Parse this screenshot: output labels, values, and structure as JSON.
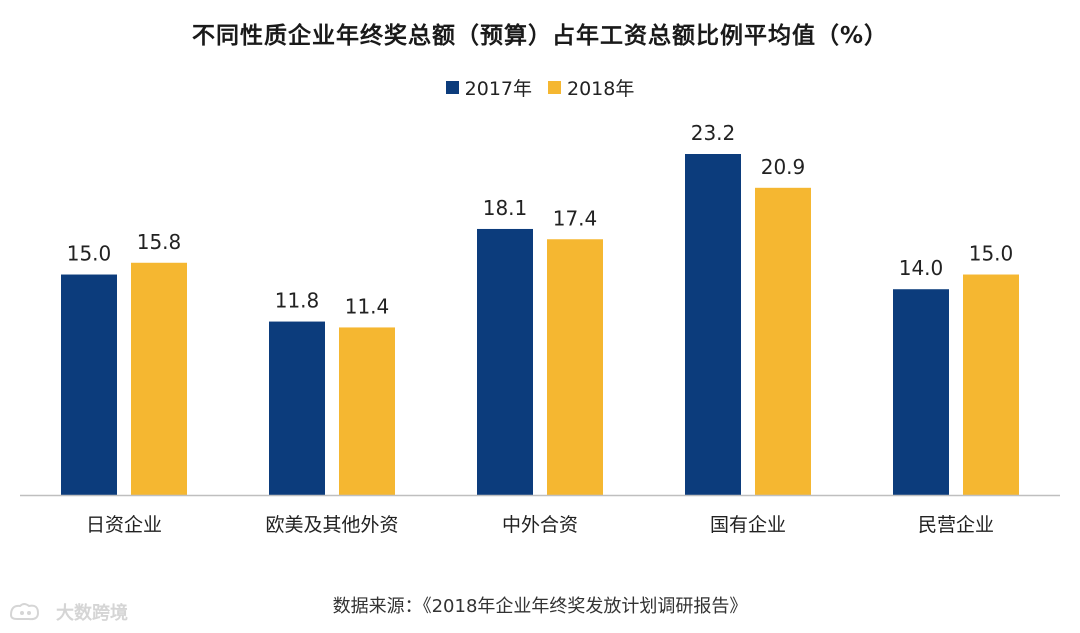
{
  "colors": {
    "series_2017": "#0c3c7c",
    "series_2018": "#f5b731",
    "axis": "#bfbfbf",
    "text": "#222222"
  },
  "chart_data": {
    "type": "bar",
    "title": "不同性质企业年终奖总额（预算）占年工资总额比例平均值（%）",
    "categories": [
      "日资企业",
      "欧美及其他外资",
      "中外合资",
      "国有企业",
      "民营企业"
    ],
    "series": [
      {
        "name": "2017年",
        "values": [
          15.0,
          11.8,
          18.1,
          23.2,
          14.0
        ]
      },
      {
        "name": "2018年",
        "values": [
          15.8,
          11.4,
          17.4,
          20.9,
          15.0
        ]
      }
    ],
    "value_labels": [
      [
        "15.0",
        "11.8",
        "18.1",
        "23.2",
        "14.0"
      ],
      [
        "15.8",
        "11.4",
        "17.4",
        "20.9",
        "15.0"
      ]
    ],
    "ylim": [
      0,
      23.2
    ],
    "legend_position": "top-center",
    "grid": false,
    "source": "数据来源：《2018年企业年终奖发放计划调研报告》"
  },
  "watermark": {
    "text": "大数跨境",
    "icon": "brand-logo-icon"
  }
}
